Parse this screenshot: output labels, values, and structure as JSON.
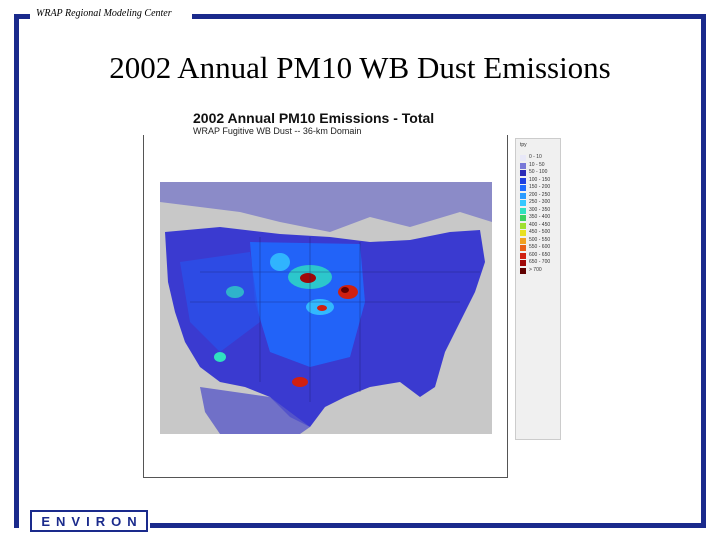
{
  "slide": {
    "header_label": "WRAP Regional Modeling Center",
    "title": "2002 Annual PM10 WB Dust Emissions"
  },
  "map": {
    "title": "2002 Annual PM10 Emissions  - Total",
    "subtitle": "WRAP Fugitive WB Dust -- 36-km Domain",
    "colors": {
      "background": "#c8c8c8",
      "land_low": "#3a3ad0",
      "land_mid": "#1f6bff",
      "land_high": "#8b0000",
      "frame": "#1a2a8c"
    }
  },
  "legend": {
    "header": "tpy",
    "entries": [
      {
        "label": "0 - 10",
        "color": "#e8e8f8"
      },
      {
        "label": "10 - 50",
        "color": "#7878d8"
      },
      {
        "label": "50 - 100",
        "color": "#2a2ab8"
      },
      {
        "label": "100 - 150",
        "color": "#1f3fe0"
      },
      {
        "label": "150 - 200",
        "color": "#1f6bff"
      },
      {
        "label": "200 - 250",
        "color": "#2a9bff"
      },
      {
        "label": "250 - 300",
        "color": "#35c8ff"
      },
      {
        "label": "300 - 350",
        "color": "#30e0c0"
      },
      {
        "label": "350 - 400",
        "color": "#3cd060"
      },
      {
        "label": "400 - 450",
        "color": "#a0e030"
      },
      {
        "label": "450 - 500",
        "color": "#e8e020"
      },
      {
        "label": "500 - 550",
        "color": "#f0a020"
      },
      {
        "label": "550 - 600",
        "color": "#e86018"
      },
      {
        "label": "600 - 650",
        "color": "#d02010"
      },
      {
        "label": "650 - 700",
        "color": "#a00808"
      },
      {
        "label": "> 700",
        "color": "#600000"
      }
    ]
  },
  "logo": {
    "text": "ENVIRON"
  }
}
